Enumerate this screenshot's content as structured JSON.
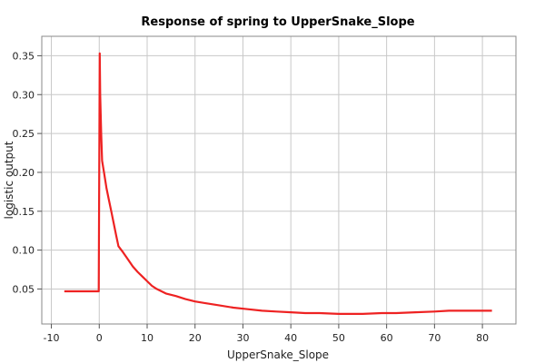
{
  "chart_data": {
    "type": "line",
    "title": "Response of spring to UpperSnake_Slope",
    "xlabel": "UpperSnake_Slope",
    "ylabel": "logistic output",
    "xlim": [
      -12,
      87
    ],
    "ylim": [
      0.005,
      0.375
    ],
    "xticks": [
      -10,
      0,
      10,
      20,
      30,
      40,
      50,
      60,
      70,
      80
    ],
    "yticks": [
      0.05,
      0.1,
      0.15,
      0.2,
      0.25,
      0.3,
      0.35
    ],
    "xtick_labels": [
      "-10",
      "0",
      "10",
      "20",
      "30",
      "40",
      "50",
      "60",
      "70",
      "80"
    ],
    "ytick_labels": [
      "0.05",
      "0.10",
      "0.15",
      "0.20",
      "0.25",
      "0.30",
      "0.35"
    ],
    "grid": true,
    "series": [
      {
        "color": "#ee2222",
        "x": [
          -7.3,
          -0.2,
          -0.1,
          0.1,
          0.2,
          0.4,
          0.6,
          1.0,
          1.5,
          2.0,
          2.5,
          3.0,
          3.5,
          4.0,
          5.0,
          6.0,
          7.0,
          8.0,
          9.0,
          10.0,
          11.0,
          12.0,
          13.0,
          14.0,
          16.0,
          18.0,
          20.0,
          22.0,
          25.0,
          28.0,
          31.0,
          34.0,
          37.0,
          40.0,
          43.0,
          46.0,
          50.0,
          55.0,
          59.0,
          62.0,
          66.0,
          70.0,
          73.0,
          76.0,
          80.0,
          82.0
        ],
        "y": [
          0.047,
          0.047,
          0.047,
          0.353,
          0.3,
          0.25,
          0.215,
          0.2,
          0.18,
          0.165,
          0.15,
          0.135,
          0.12,
          0.105,
          0.097,
          0.088,
          0.079,
          0.072,
          0.066,
          0.06,
          0.054,
          0.05,
          0.047,
          0.044,
          0.041,
          0.037,
          0.034,
          0.032,
          0.029,
          0.026,
          0.024,
          0.022,
          0.021,
          0.02,
          0.019,
          0.019,
          0.018,
          0.018,
          0.019,
          0.019,
          0.02,
          0.021,
          0.022,
          0.022,
          0.022,
          0.022
        ]
      }
    ]
  }
}
